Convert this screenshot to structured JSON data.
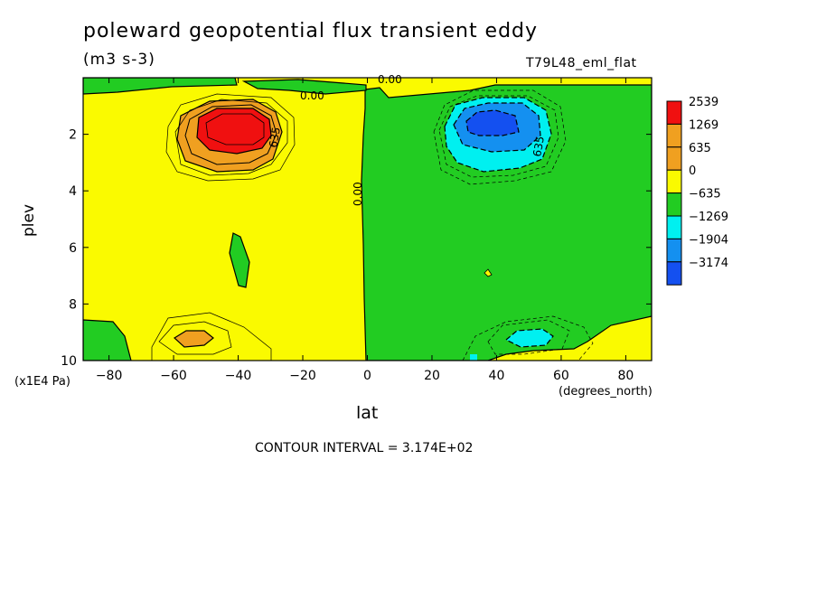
{
  "title": "poleward geopotential flux transient eddy",
  "units": "(m3 s-3)",
  "run_label": "T79L48_eml_flat",
  "contour_interval_text": "CONTOUR INTERVAL = 3.174E+02",
  "colors": {
    "c_gt_2539": "#f01010",
    "c_1269_2539": "#f0a020",
    "c_635_1269": "#f0a020",
    "c_0_635": "#fafa00",
    "c_m635_0": "#22cc22",
    "c_m1269_m635": "#00f0f0",
    "c_m1904_m1269": "#1490f0",
    "c_lt_m1904": "#1450f0"
  },
  "chart_data": {
    "type": "heatmap",
    "title": "poleward geopotential flux transient eddy",
    "subtitle": "(m3 s-3)",
    "xlabel": "lat",
    "x_units": "(degrees_north)",
    "ylabel": "plev",
    "y_units": "(x1E4 Pa)",
    "xlim": [
      -88,
      88
    ],
    "ylim": [
      10,
      0
    ],
    "x_ticks": [
      -80,
      -60,
      -40,
      -20,
      0,
      20,
      40,
      60,
      80
    ],
    "y_ticks": [
      2,
      4,
      6,
      8,
      10
    ],
    "x_tick_labels": [
      "−80",
      "−60",
      "−40",
      "−20",
      "0",
      "20",
      "40",
      "60",
      "80"
    ],
    "y_tick_labels": [
      "2",
      "4",
      "6",
      "8",
      "10"
    ],
    "colorbar": {
      "levels": [
        "2539",
        "1269",
        "635",
        "0",
        "−635",
        "−1269",
        "−1904",
        "−3174"
      ],
      "colors": [
        "#f01010",
        "#f0a020",
        "#f0a020",
        "#fafa00",
        "#22cc22",
        "#00f0f0",
        "#1490f0",
        "#1450f0"
      ]
    },
    "contour_labels": [
      "0.00",
      "0.00",
      "0.00",
      "635",
      "635"
    ],
    "features": [
      {
        "name": "NH negative maximum",
        "lat": 38,
        "plev": 1.8,
        "min": -3174
      },
      {
        "name": "SH positive maximum",
        "lat": -42,
        "plev": 1.8,
        "max": 2539
      },
      {
        "name": "SH low-level positive",
        "lat": -54,
        "plev": 9.2,
        "max": 1269
      },
      {
        "name": "NH low-level negative",
        "lat": 44,
        "plev": 9.3,
        "min": -1269
      }
    ],
    "contour_interval": 317.4
  }
}
